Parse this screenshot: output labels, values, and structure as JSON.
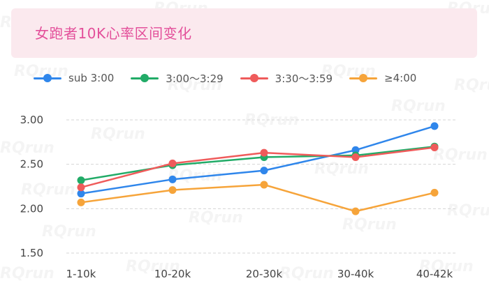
{
  "watermark": "RQrun",
  "chart_data": {
    "type": "line",
    "title": "女跑者10K心率区间变化",
    "categories": [
      "1-10k",
      "10-20k",
      "20-30k",
      "30-40k",
      "40-42k"
    ],
    "ylim": [
      1.5,
      3.0
    ],
    "yticks": [
      "1.50",
      "2.00",
      "2.50",
      "3.00"
    ],
    "grid": true,
    "legend_position": "top-left",
    "series": [
      {
        "name": "sub 3:00",
        "color": "#2f86eb",
        "values": [
          2.17,
          2.33,
          2.43,
          2.66,
          2.93
        ]
      },
      {
        "name": "3:00～3:29",
        "color": "#21ab67",
        "values": [
          2.32,
          2.49,
          2.58,
          2.6,
          2.7
        ]
      },
      {
        "name": "3:30～3:59",
        "color": "#ef5b5b",
        "values": [
          2.24,
          2.51,
          2.63,
          2.58,
          2.69
        ]
      },
      {
        "name": "≥4:00",
        "color": "#f6a43a",
        "values": [
          2.07,
          2.21,
          2.27,
          1.97,
          2.18
        ]
      }
    ]
  }
}
